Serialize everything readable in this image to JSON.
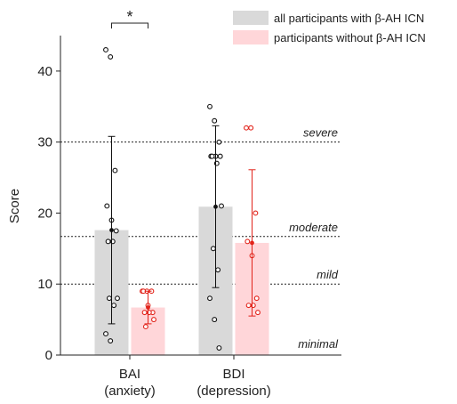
{
  "chart_data": {
    "type": "bar",
    "ylabel": "Score",
    "ylim": [
      0,
      45
    ],
    "yticks": [
      0,
      10,
      20,
      30,
      40
    ],
    "categories": [
      {
        "line1": "BAI",
        "line2": "(anxiety)"
      },
      {
        "line1": "BDI",
        "line2": "(depression)"
      }
    ],
    "series": [
      {
        "name": "all participants with β-AH ICN",
        "color": "#d9d9d9",
        "point_color": "#111111",
        "values": [
          17.6,
          20.9
        ],
        "sd": [
          13.2,
          11.4
        ],
        "points": [
          [
            43,
            42,
            26,
            21,
            19,
            17.5,
            16,
            16,
            8,
            8,
            7,
            3,
            2
          ],
          [
            35,
            33,
            30,
            28,
            28,
            28,
            28,
            27,
            21,
            15,
            12,
            8,
            5,
            1
          ]
        ]
      },
      {
        "name": "participants without β-AH ICN",
        "color": "#ffd6d9",
        "point_color": "#e2231a",
        "values": [
          6.7,
          15.8
        ],
        "sd": [
          2.3,
          10.3
        ],
        "points": [
          [
            9,
            9,
            9,
            9,
            7,
            6,
            6,
            6,
            5,
            4
          ],
          [
            32,
            32,
            20,
            16,
            14,
            8,
            7,
            7,
            6
          ]
        ]
      }
    ],
    "thresholds": [
      {
        "label": "severe",
        "value": 30
      },
      {
        "label": "moderate",
        "value": 16.7
      },
      {
        "label": "mild",
        "value": 10
      },
      {
        "label": "minimal",
        "value": 0
      }
    ],
    "annotation": {
      "text": "*",
      "category_index": 0
    },
    "legend_position": "top-right",
    "grid": false
  }
}
